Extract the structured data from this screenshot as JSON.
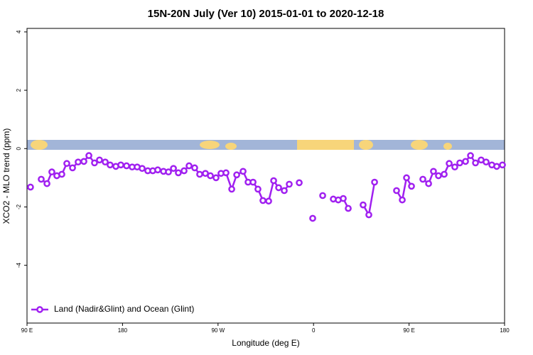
{
  "chart_data": {
    "type": "line",
    "title": "15N-20N July (Ver 10)   2015-01-01 to 2020-12-18",
    "xlabel": "Longitude (deg E)",
    "ylabel": "XCO2 - MLO trend (ppm)",
    "x": [
      93.3,
      98,
      103.4,
      108.8,
      113.4,
      118.1,
      122.8,
      127.5,
      132.9,
      138.2,
      143.6,
      148.3,
      153.6,
      158.3,
      163.7,
      168.3,
      173.7,
      178.4,
      183.8,
      189.1,
      193.8,
      198.5,
      203.8,
      208.5,
      213.2,
      218.6,
      223.3,
      228.0,
      232.6,
      238.0,
      242.7,
      248.0,
      252.7,
      258.1,
      262.8,
      268.1,
      272.8,
      277.5,
      282.9,
      287.6,
      293.6,
      298.3,
      303.0,
      307.6,
      312.3,
      317.7,
      322.4,
      327.1,
      332.4,
      337.1,
      342,
      346.5,
      352,
      359.2,
      364,
      368.6,
      374,
      378.6,
      383.3,
      388.0,
      392.7,
      400,
      406.7,
      412.1,
      417.5,
      428,
      438.2,
      443.6,
      447.6,
      452.3,
      458,
      463.0,
      468.4,
      473.0,
      477.7,
      483.1,
      487.8,
      493.1,
      497.8,
      503.2,
      507.9,
      512.6,
      517.9,
      522.6,
      528.0,
      532.6,
      538.0
    ],
    "series": [
      {
        "name": "Land (Nadir&Glint) and Ocean (Glint)",
        "color": "#a020f0",
        "values": [
          -1.32,
          null,
          -1.05,
          -1.2,
          -0.8,
          -0.93,
          -0.88,
          -0.51,
          -0.66,
          -0.46,
          -0.44,
          -0.24,
          -0.49,
          -0.39,
          -0.46,
          -0.56,
          -0.61,
          -0.56,
          -0.59,
          -0.63,
          -0.63,
          -0.68,
          -0.76,
          -0.76,
          -0.73,
          -0.78,
          -0.8,
          -0.68,
          -0.83,
          -0.76,
          -0.59,
          -0.66,
          -0.88,
          -0.85,
          -0.93,
          -1.0,
          -0.85,
          -0.83,
          -1.39,
          -0.9,
          -0.78,
          -1.15,
          -1.15,
          -1.39,
          -1.78,
          -1.8,
          -1.1,
          -1.34,
          -1.44,
          -1.22,
          null,
          -1.17,
          null,
          -2.39,
          null,
          -1.61,
          null,
          -1.73,
          -1.76,
          -1.71,
          -2.05,
          null,
          -1.93,
          -2.27,
          -1.15,
          null,
          -1.44,
          -1.76,
          -1.0,
          -1.29,
          null,
          -1.05,
          -1.2,
          -0.78,
          -0.93,
          -0.88,
          -0.51,
          -0.63,
          -0.49,
          -0.44,
          -0.24,
          -0.49,
          -0.39,
          -0.46,
          -0.56,
          -0.61,
          -0.56
        ]
      }
    ],
    "xlim": [
      90,
      540
    ],
    "xticks": [
      {
        "value": 90,
        "label": "90 E"
      },
      180,
      {
        "value": 270,
        "label": "90 W"
      },
      {
        "value": 360,
        "label": "0"
      },
      {
        "value": 450,
        "label": "90 E"
      },
      {
        "value": 540,
        "label": "180"
      }
    ],
    "ylim": [
      -5.98,
      4.12
    ],
    "yticks": [
      -4,
      -2,
      0,
      2,
      4
    ],
    "legend": "bottom-left"
  }
}
